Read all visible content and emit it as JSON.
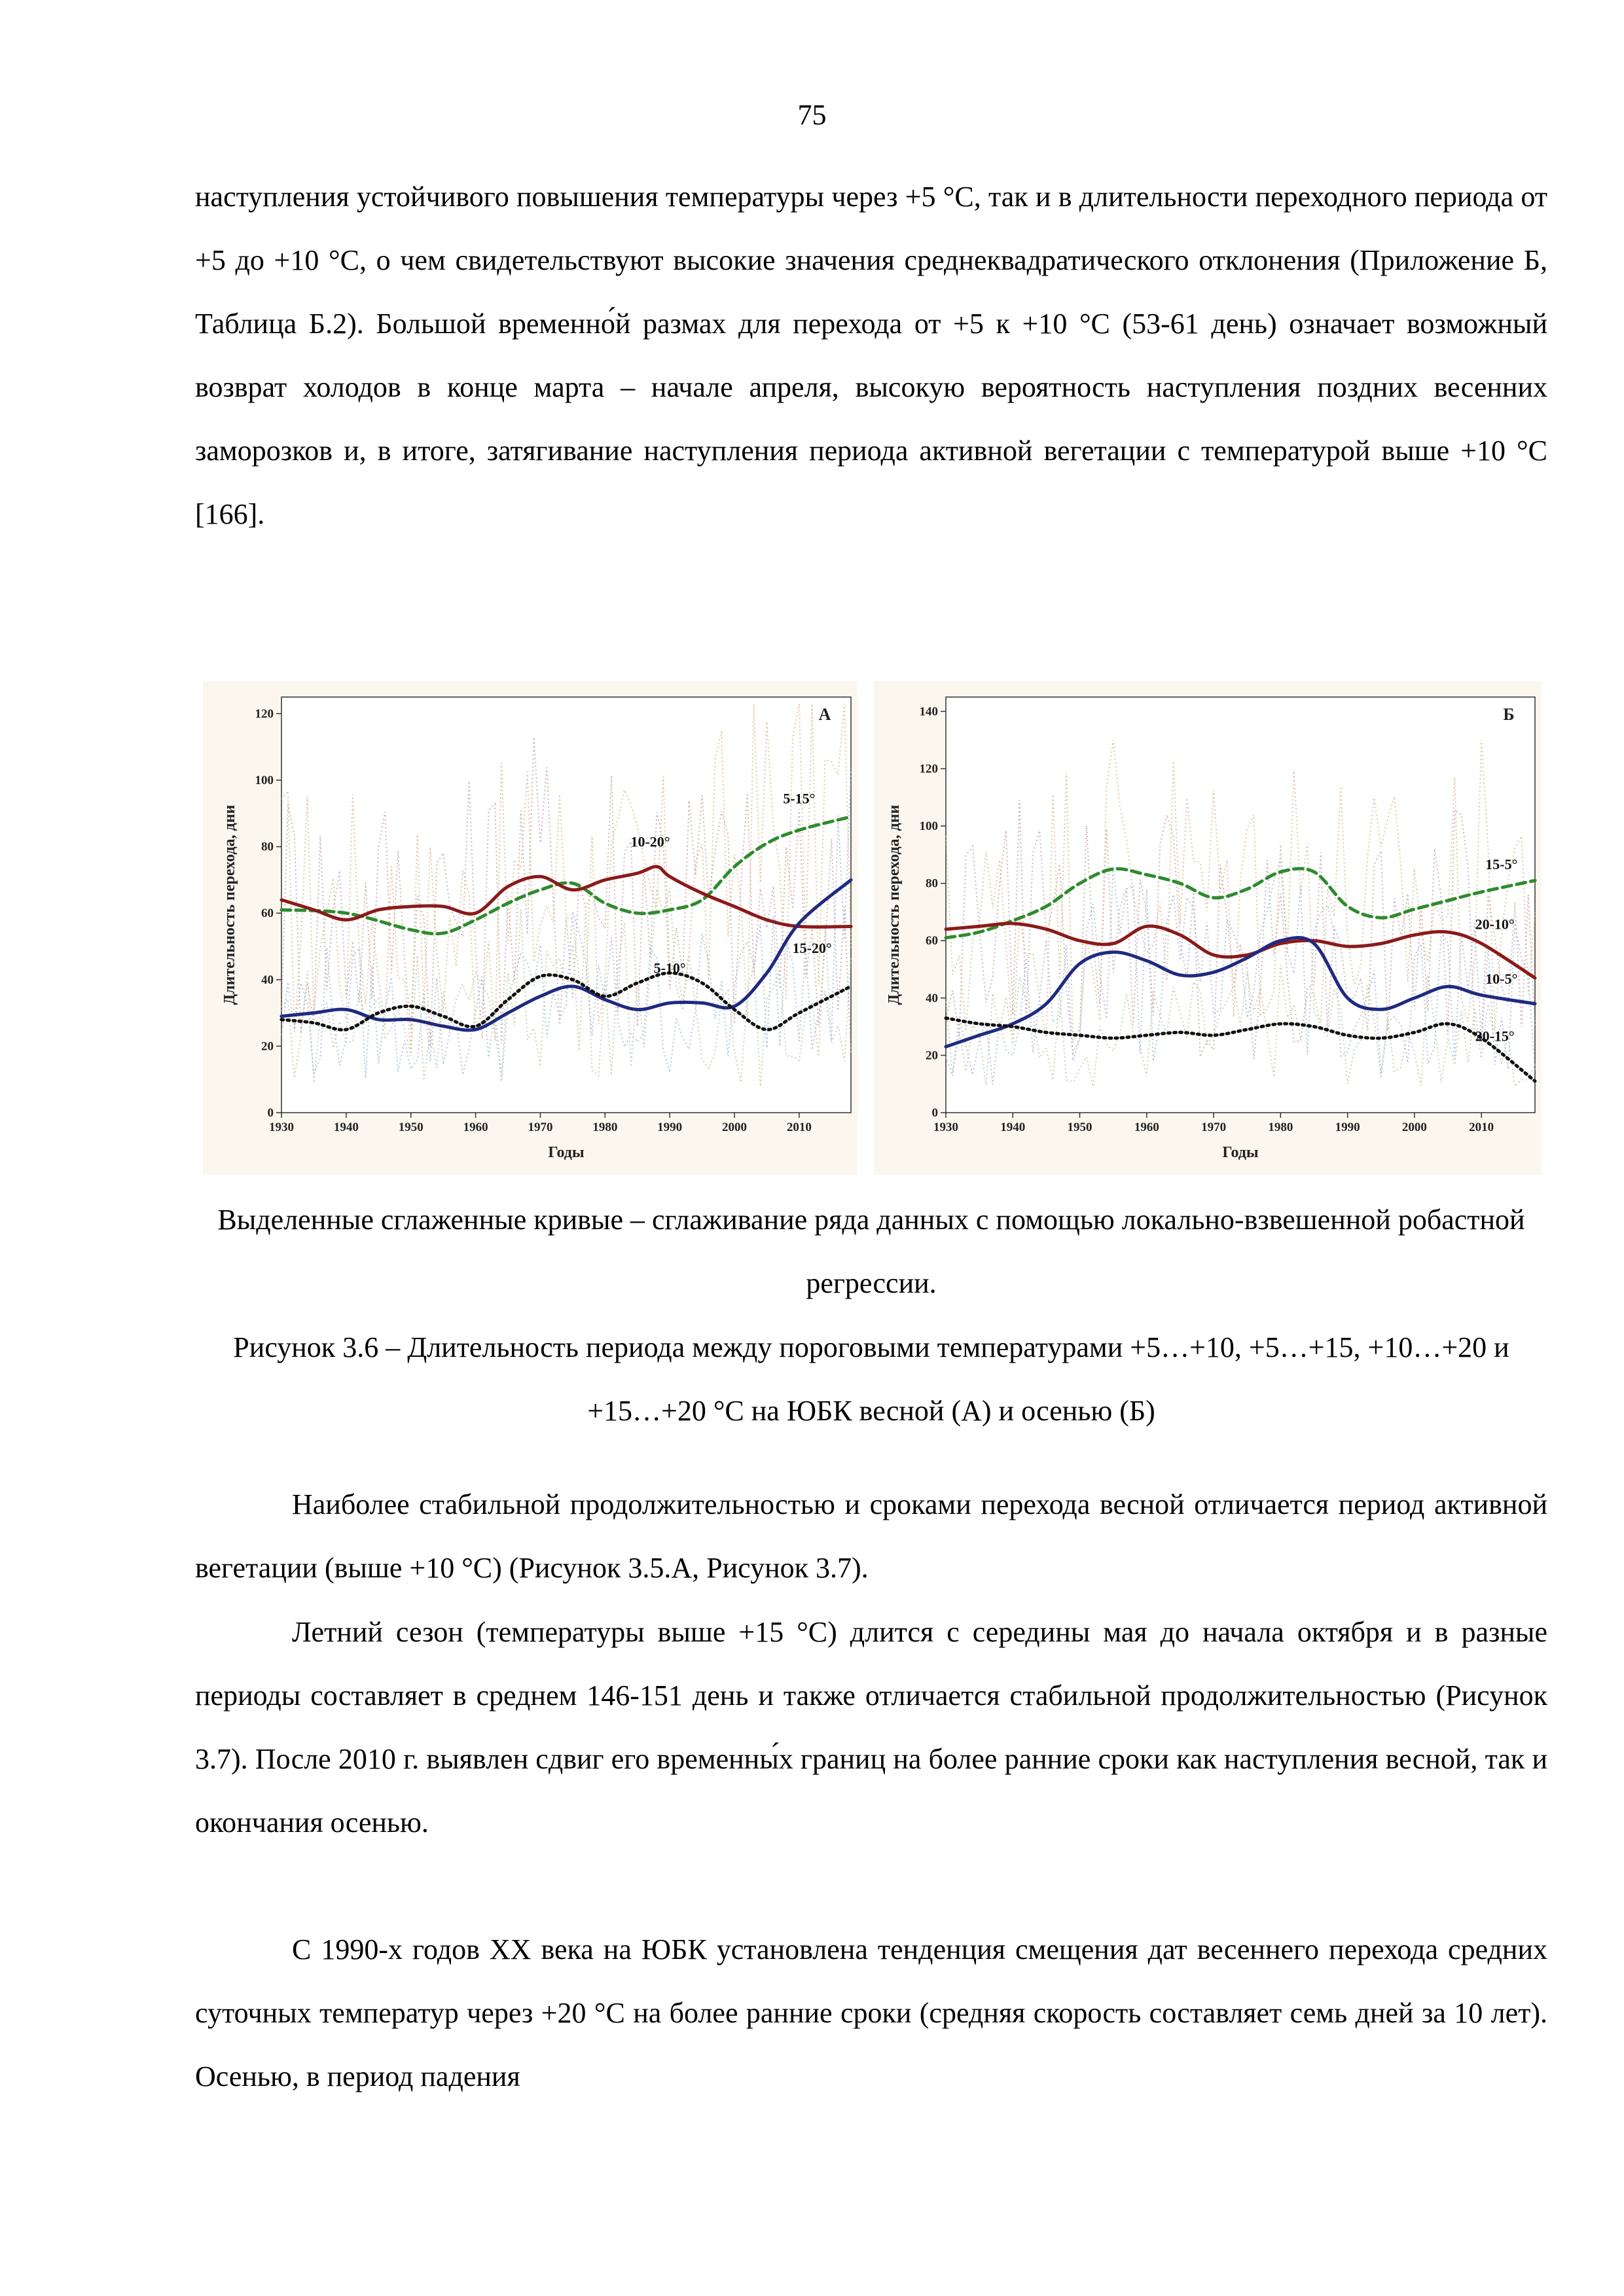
{
  "page_number": "75",
  "paragraph1": "наступления устойчивого повышения температуры через +5 °С, так и в длительности переходного периода от +5 до +10 °С, о чем свидетельствуют высокие значения среднеквадратического отклонения (Приложение Б, Таблица Б.2). Большой временно́й размах для перехода от +5 к +10 °С (53-61 день) означает возможный возврат холодов в конце марта – начале апреля, высокую вероятность наступления поздних весенних заморозков и, в итоге, затягивание наступления периода активной вегетации с температурой выше +10 °С [166].",
  "caption_line1": "Выделенные сглаженные кривые – сглаживание ряда данных с помощью локально-взвешенной робастной регрессии.",
  "caption_line2": "Рисунок 3.6 – Длительность периода между пороговыми температурами +5…+10, +5…+15, +10…+20 и +15…+20 °С на ЮБК весной (А) и осенью (Б)",
  "paragraph2": "Наиболее стабильной продолжительностью и сроками перехода весной отличается период активной вегетации (выше +10 °С) (Рисунок 3.5.А, Рисунок 3.7).",
  "paragraph3": "Летний сезон (температуры выше +15 °С) длится с середины мая до начала октября и в разные периоды составляет в среднем 146-151 день и также отличается стабильной продолжительностью (Рисунок 3.7). После 2010 г. выявлен сдвиг его временны́х границ на более ранние сроки как наступления весной, так и окончания осенью.",
  "paragraph4": "С 1990-х годов XX века на ЮБК установлена тенденция смещения дат весеннего перехода средних суточных температур через +20 °С на более ранние сроки (средняя скорость составляет семь дней за 10 лет). Осенью, в период падения",
  "chart_data": [
    {
      "type": "line",
      "panel_label": "А",
      "xlabel": "Годы",
      "ylabel": "Длительность перехода, дни",
      "xlim": [
        1930,
        2018
      ],
      "ylim": [
        0,
        125
      ],
      "xticks": [
        "1930",
        "1940",
        "1950",
        "1960",
        "1970",
        "1980",
        "1990",
        "2000",
        "2010"
      ],
      "yticks": [
        "0",
        "20",
        "40",
        "60",
        "80",
        "100",
        "120"
      ],
      "series": [
        {
          "name": "5-15°",
          "color": "#2e8b2e",
          "dash": "dashed",
          "x": [
            1930,
            1940,
            1950,
            1955,
            1960,
            1965,
            1970,
            1975,
            1980,
            1985,
            1990,
            1995,
            2000,
            2005,
            2010,
            2018
          ],
          "values": [
            61,
            60,
            55,
            54,
            58,
            63,
            67,
            69,
            63,
            60,
            61,
            64,
            74,
            81,
            85,
            89
          ]
        },
        {
          "name": "10-20°",
          "color": "#8b1a1a",
          "dash": "solid",
          "x": [
            1930,
            1935,
            1940,
            1945,
            1950,
            1955,
            1960,
            1965,
            1970,
            1975,
            1980,
            1985,
            1988,
            1990,
            1995,
            2000,
            2005,
            2010,
            2018
          ],
          "values": [
            64,
            61,
            58,
            61,
            62,
            62,
            60,
            68,
            71,
            67,
            70,
            72,
            74,
            71,
            66,
            62,
            58,
            56,
            56
          ]
        },
        {
          "name": "5-10°",
          "color": "#1f2a80",
          "dash": "solid",
          "x": [
            1930,
            1935,
            1940,
            1945,
            1950,
            1955,
            1960,
            1965,
            1970,
            1975,
            1980,
            1985,
            1990,
            1995,
            2000,
            2005,
            2010,
            2018
          ],
          "values": [
            29,
            30,
            31,
            28,
            28,
            26,
            25,
            30,
            35,
            38,
            34,
            31,
            33,
            33,
            32,
            42,
            57,
            70
          ]
        },
        {
          "name": "15-20°",
          "color": "#111111",
          "dash": "dotted",
          "x": [
            1930,
            1935,
            1940,
            1945,
            1950,
            1955,
            1960,
            1965,
            1970,
            1975,
            1980,
            1985,
            1990,
            1995,
            2000,
            2005,
            2010,
            2018
          ],
          "values": [
            28,
            27,
            25,
            30,
            32,
            29,
            26,
            34,
            41,
            40,
            35,
            39,
            42,
            39,
            31,
            25,
            30,
            38
          ]
        }
      ]
    },
    {
      "type": "line",
      "panel_label": "Б",
      "xlabel": "Годы",
      "ylabel": "Длительность перехода, дни",
      "xlim": [
        1930,
        2018
      ],
      "ylim": [
        0,
        145
      ],
      "xticks": [
        "1930",
        "1940",
        "1950",
        "1960",
        "1970",
        "1980",
        "1990",
        "2000",
        "2010"
      ],
      "yticks": [
        "0",
        "20",
        "40",
        "60",
        "80",
        "100",
        "120",
        "140"
      ],
      "series": [
        {
          "name": "15-5°",
          "color": "#2e8b2e",
          "dash": "dashed",
          "x": [
            1930,
            1935,
            1940,
            1945,
            1950,
            1955,
            1960,
            1965,
            1970,
            1975,
            1980,
            1985,
            1990,
            1995,
            2000,
            2005,
            2010,
            2018
          ],
          "values": [
            61,
            63,
            67,
            72,
            80,
            85,
            83,
            80,
            75,
            78,
            84,
            84,
            72,
            68,
            71,
            74,
            77,
            81
          ]
        },
        {
          "name": "20-10°",
          "color": "#8b1a1a",
          "dash": "solid",
          "x": [
            1930,
            1935,
            1940,
            1945,
            1950,
            1955,
            1960,
            1965,
            1970,
            1975,
            1980,
            1985,
            1990,
            1995,
            2000,
            2005,
            2010,
            2018
          ],
          "values": [
            64,
            65,
            66,
            64,
            60,
            59,
            65,
            62,
            55,
            55,
            59,
            60,
            58,
            59,
            62,
            63,
            59,
            47
          ]
        },
        {
          "name": "10-5°",
          "color": "#1f2a80",
          "dash": "solid",
          "x": [
            1930,
            1935,
            1940,
            1945,
            1950,
            1955,
            1960,
            1965,
            1970,
            1975,
            1980,
            1985,
            1990,
            1995,
            2000,
            2005,
            2010,
            2018
          ],
          "values": [
            23,
            27,
            31,
            38,
            52,
            56,
            53,
            48,
            49,
            54,
            60,
            59,
            40,
            36,
            40,
            44,
            41,
            38
          ]
        },
        {
          "name": "20-15°",
          "color": "#111111",
          "dash": "dotted",
          "x": [
            1930,
            1935,
            1940,
            1945,
            1950,
            1955,
            1960,
            1965,
            1970,
            1975,
            1980,
            1985,
            1990,
            1995,
            2000,
            2005,
            2010,
            2018
          ],
          "values": [
            33,
            31,
            30,
            28,
            27,
            26,
            27,
            28,
            27,
            29,
            31,
            30,
            27,
            26,
            28,
            31,
            26,
            11
          ]
        }
      ]
    }
  ]
}
